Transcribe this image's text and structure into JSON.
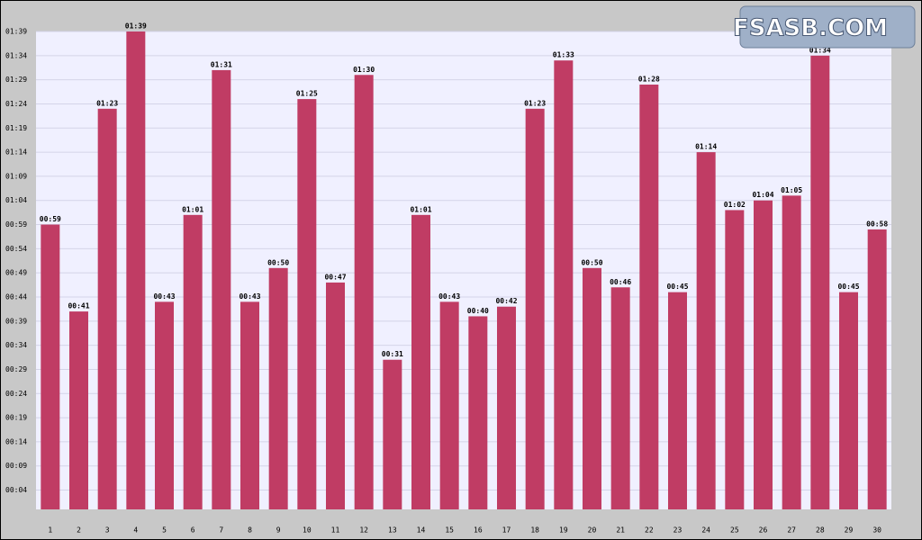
{
  "chart_data": {
    "type": "bar",
    "categories": [
      "1",
      "2",
      "3",
      "4",
      "5",
      "6",
      "7",
      "8",
      "9",
      "10",
      "11",
      "12",
      "13",
      "14",
      "15",
      "16",
      "17",
      "18",
      "19",
      "20",
      "21",
      "22",
      "23",
      "24",
      "25",
      "26",
      "27",
      "28",
      "29",
      "30"
    ],
    "values": [
      59,
      41,
      83,
      99,
      43,
      61,
      91,
      43,
      50,
      85,
      47,
      90,
      31,
      61,
      43,
      40,
      42,
      83,
      93,
      50,
      46,
      88,
      45,
      74,
      62,
      64,
      65,
      94,
      45,
      58
    ],
    "value_labels": [
      "00:59",
      "00:41",
      "01:23",
      "01:39",
      "00:43",
      "01:01",
      "01:31",
      "00:43",
      "00:50",
      "01:25",
      "00:47",
      "01:30",
      "00:31",
      "01:01",
      "00:43",
      "00:40",
      "00:42",
      "01:23",
      "01:33",
      "00:50",
      "00:46",
      "01:28",
      "00:45",
      "01:14",
      "01:02",
      "01:04",
      "01:05",
      "01:34",
      "00:45",
      "00:58"
    ],
    "color": "#c03c64",
    "ylim": [
      0,
      99
    ],
    "yticks": [
      {
        "value": 4,
        "label": "00:04"
      },
      {
        "value": 9,
        "label": "00:09"
      },
      {
        "value": 14,
        "label": "00:14"
      },
      {
        "value": 19,
        "label": "00:19"
      },
      {
        "value": 24,
        "label": "00:24"
      },
      {
        "value": 29,
        "label": "00:29"
      },
      {
        "value": 34,
        "label": "00:34"
      },
      {
        "value": 39,
        "label": "00:39"
      },
      {
        "value": 44,
        "label": "00:44"
      },
      {
        "value": 49,
        "label": "00:49"
      },
      {
        "value": 54,
        "label": "00:54"
      },
      {
        "value": 59,
        "label": "00:59"
      },
      {
        "value": 64,
        "label": "01:04"
      },
      {
        "value": 69,
        "label": "01:09"
      },
      {
        "value": 74,
        "label": "01:14"
      },
      {
        "value": 79,
        "label": "01:19"
      },
      {
        "value": 84,
        "label": "01:24"
      },
      {
        "value": 89,
        "label": "01:29"
      },
      {
        "value": 94,
        "label": "01:34"
      },
      {
        "value": 99,
        "label": "01:39"
      }
    ],
    "grid": true,
    "logo": "FSASB.COM"
  }
}
